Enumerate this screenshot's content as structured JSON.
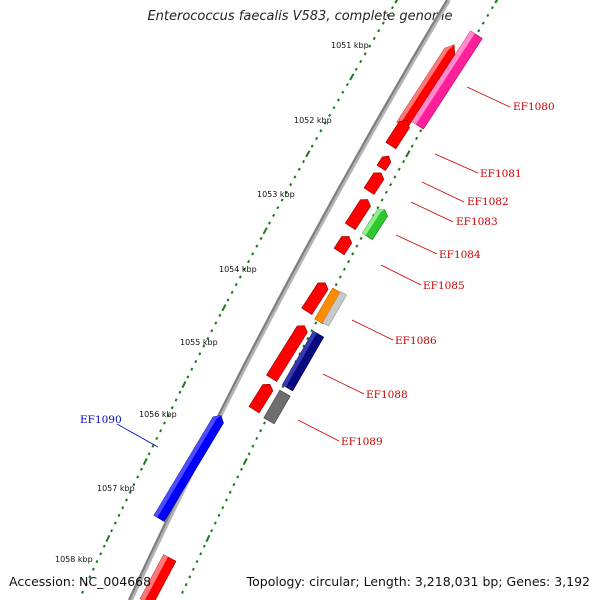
{
  "title": "Enterococcus faecalis V583, complete genome",
  "footer": {
    "accession": "Accession: NC_004668",
    "summary": "Topology: circular; Length: 3,218,031 bp; Genes: 3,192"
  },
  "kbp_labels": [
    "1051 kbp",
    "1052 kbp",
    "1053 kbp",
    "1054 kbp",
    "1055 kbp",
    "1056 kbp",
    "1057 kbp",
    "1058 kbp"
  ],
  "gene_labels": [
    {
      "name": "EF1080",
      "color": "#cc0000"
    },
    {
      "name": "EF1081",
      "color": "#cc0000"
    },
    {
      "name": "EF1082",
      "color": "#cc0000"
    },
    {
      "name": "EF1083",
      "color": "#cc0000"
    },
    {
      "name": "EF1084",
      "color": "#cc0000"
    },
    {
      "name": "EF1085",
      "color": "#cc0000"
    },
    {
      "name": "EF1086",
      "color": "#cc0000"
    },
    {
      "name": "EF1088",
      "color": "#cc0000"
    },
    {
      "name": "EF1089",
      "color": "#cc0000"
    },
    {
      "name": "EF1090",
      "color": "#0000cc"
    }
  ],
  "feature_colors": {
    "cds": "#ff0000",
    "pink": "#ff1f9a",
    "green": "#2ec82e",
    "orange": "#ff8c00",
    "navy": "#0a0a80",
    "gray": "#6e6e6e",
    "blue": "#0000ff",
    "backbone": "#888888",
    "tick": "#1a7a1a"
  }
}
